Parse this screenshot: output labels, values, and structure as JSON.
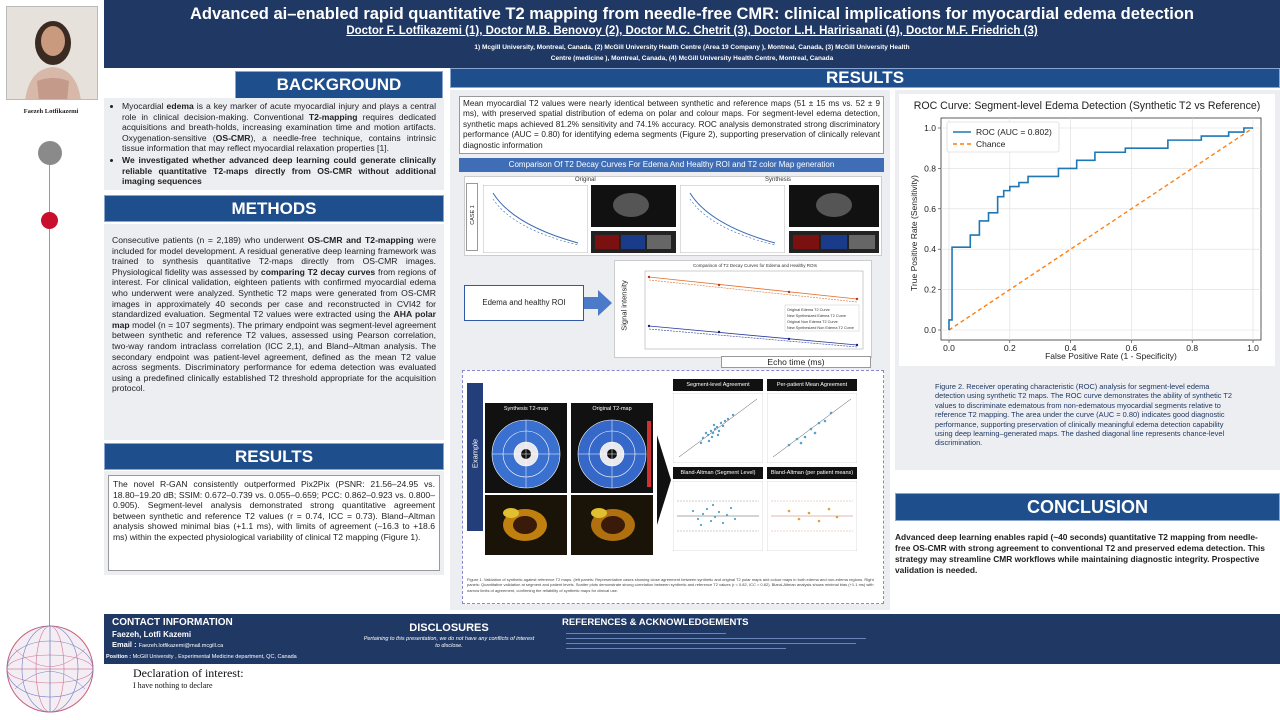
{
  "header": {
    "title": "Advanced ai–enabled rapid quantitative T2 mapping from needle-free CMR: clinical implications for myocardial edema detection",
    "authors": "Doctor F. Lotfikazemi (1), Doctor M.B. Benovoy (2), Doctor M.C. Chetrit (3), Doctor L.H. Haririsanati (4), Doctor M.F. Friedrich (3)",
    "affiliations_1": "1) Mcgill University, Montreal, Canada, (2) McGill University Health Centre (Area 19 Company ), Montreal, Canada, (3) McGill University Health",
    "affiliations_2": "Centre (medicine ), Montreal, Canada, (4) McGill University Health Centre, Montreal, Canada"
  },
  "presenter": {
    "name": "Faezeh Lotfikazemi"
  },
  "background": {
    "title": "BACKGROUND",
    "b1_a": "Myocardial ",
    "b1_b": "edema",
    "b1_c": " is a key marker of acute myocardial injury and plays a central role in clinical decision-making. Conventional ",
    "b1_d": "T2-mapping",
    "b1_e": " requires dedicated acquisitions and breath-holds, increasing examination time and motion artifacts. Oxygenation-sensitive (",
    "b1_f": "OS-CMR",
    "b1_g": "), a needle-free technique, contains intrinsic tissue information that may reflect myocardial relaxation properties [1].",
    "b2": "We investigated whether advanced deep learning could generate clinically reliable quantitative T2-maps directly from OS-CMR without additional imaging sequences"
  },
  "methods": {
    "title": "METHODS",
    "p_a": "Consecutive patients (n = 2,189) who underwent ",
    "p_b": "OS-CMR and T2-mapping",
    "p_c": " were included for model development. A residual generative deep learning framework was trained to synthesis quantitative T2-maps directly from OS-CMR images. Physiological fidelity was assessed by ",
    "p_d": "comparing T2 decay curves",
    "p_e": " from regions of interest. For clinical validation, eighteen patients with confirmed myocardial edema who underwent were analyzed. Synthetic T2 maps were generated from OS-CMR images in approximately 40 seconds per case and reconstructed in CVI42 for standardized evaluation. Segmental T2 values were extracted using the ",
    "p_f": "AHA polar map",
    "p_g": " model (n = 107 segments). The primary endpoint was segment-level agreement between synthetic and reference T2 values, assessed using Pearson correlation, two-way random intraclass correlation (ICC 2,1), and Bland–Altman analysis. The secondary endpoint was patient-level agreement, defined as the mean T2 value across segments. Discriminatory performance for edema detection was evaluated using a predefined clinically established T2 threshold appropriate for the acquisition protocol."
  },
  "results_left": {
    "title": "RESULTS",
    "text": "The novel R-GAN consistently outperformed Pix2Pix (PSNR: 21.56–24.95 vs. 18.80–19.20 dB; SSIM: 0.672–0.739 vs. 0.055–0.659; PCC: 0.862–0.923 vs. 0.800–0.905). Segment-level analysis demonstrated strong quantitative agreement between synthetic and reference T2 values (r = 0.74, ICC = 0.73). Bland–Altman analysis showed minimal bias (+1.1 ms), with limits of agreement (–16.3 to +18.6 ms) within the expected physiological variability of clinical T2 mapping (Figure 1)."
  },
  "results_main": {
    "title": "RESULTS",
    "summary": "Mean myocardial T2 values were nearly identical between synthetic and reference maps (51 ± 15 ms vs. 52 ± 9 ms), with preserved spatial distribution of edema on polar and colour maps. For segment-level edema detection, synthetic maps achieved 81.2% sensitivity and 74.1% accuracy. ROC analysis demonstrated strong discriminatory performance (AUC = 0.80) for identifying edema segments (Figure 2), supporting preservation of clinically relevant diagnostic information",
    "fig_banner": "Comparison Of T2 Decay Curves For Edema And Healthy ROI and T2 color Map generation",
    "original_label": "Original",
    "synthesis_label": "Synthesis",
    "case_label": "CASE 1",
    "roi_label": "Edema and healthy ROI",
    "decay_title": "Comparison of T2 Decay Curves for Edema and Healthy ROIs",
    "decay_ylabel": "Signal intensity",
    "decay_xlabel": "Echo time (ms)",
    "legend": [
      "Original Edema T2 Curve",
      "New Synthesized Edema T2 Curve",
      "Original Non Edema T2 Curve",
      "New Synthesized Non Edema T2 Curve"
    ],
    "synth_map_label": "Synthesis T2-map",
    "orig_map_label": "Original T2-map",
    "example_label": "Example",
    "seg_agree_label": "Segment-level Agreement",
    "pat_agree_label": "Per-patient Mean Agreement",
    "ba_seg_label": "Bland-Altman (Segment Level)",
    "ba_pat_label": "Bland-Altman (per patient means)",
    "fig1_caption": "Figure 1. Validation of synthetic against reference T2 maps. (left panels: Representative cases showing close agreement between synthetic and original T2 polar maps and colour maps in both edema and non-edema regions. Right panels: Quantitative validation at segment and patient levels. Scatter plots demonstrate strong correlation between synthetic and reference T2 values (r = 0.82, ICC = 0.82). Bland-Altman analysis shows minimal bias (+1.1 ms) with narrow limits of agreement, confirming the reliability of synthetic maps for clinical use."
  },
  "roc": {
    "title": "ROC Curve: Segment-level Edema Detection (Synthetic T2 vs Reference)",
    "legend_roc": "ROC (AUC = 0.802)",
    "legend_chance": "Chance",
    "caption": "Figure 2. Receiver operating characteristic (ROC) analysis for segment-level edema detection using synthetic T2 maps. The ROC curve demonstrates the ability of synthetic T2 values to discriminate edematous from non-edematous myocardial segments relative to reference T2 mapping. The area under the curve (AUC = 0.80) indicates good diagnostic performance, supporting preservation of clinically meaningful edema detection capability using deep learning–generated maps. The dashed diagonal line represents chance-level discrimination."
  },
  "chart_data": {
    "type": "line",
    "title": "ROC Curve: Segment-level Edema Detection (Synthetic T2 vs Reference)",
    "xlabel": "False Positive Rate (1 - Specificity)",
    "ylabel": "True Positive Rate (Sensitivity)",
    "xlim": [
      0,
      1
    ],
    "ylim": [
      0,
      1
    ],
    "xticks": [
      "0.0",
      "0.2",
      "0.4",
      "0.6",
      "0.8",
      "1.0"
    ],
    "yticks": [
      "0.0",
      "0.2",
      "0.4",
      "0.6",
      "0.8",
      "1.0"
    ],
    "grid": true,
    "legend_position": "top-left",
    "series": [
      {
        "name": "ROC (AUC = 0.802)",
        "color": "#1f77b4",
        "x": [
          0,
          0,
          0.01,
          0.01,
          0.07,
          0.07,
          0.1,
          0.1,
          0.13,
          0.13,
          0.16,
          0.16,
          0.18,
          0.18,
          0.2,
          0.2,
          0.23,
          0.23,
          0.26,
          0.26,
          0.36,
          0.36,
          0.42,
          0.42,
          0.48,
          0.48,
          0.58,
          0.58,
          0.72,
          0.72,
          0.83,
          0.83,
          0.92,
          0.92,
          0.97,
          0.97,
          1.0
        ],
        "y": [
          0,
          0.05,
          0.05,
          0.41,
          0.41,
          0.47,
          0.47,
          0.54,
          0.54,
          0.58,
          0.58,
          0.66,
          0.66,
          0.69,
          0.69,
          0.71,
          0.71,
          0.73,
          0.73,
          0.76,
          0.76,
          0.8,
          0.8,
          0.84,
          0.84,
          0.88,
          0.88,
          0.9,
          0.9,
          0.94,
          0.94,
          0.96,
          0.96,
          0.98,
          0.98,
          1.0,
          1.0
        ]
      },
      {
        "name": "Chance",
        "color": "#ff7f0e",
        "x": [
          0,
          1
        ],
        "y": [
          0,
          1
        ]
      }
    ]
  },
  "conclusion": {
    "title": "CONCLUSION",
    "text": "Advanced deep learning enables rapid (~40 seconds) quantitative T2 mapping from needle-free OS-CMR with strong agreement to conventional T2 and preserved edema detection. This strategy may streamline CMR workflows while maintaining diagnostic integrity. Prospective validation is needed."
  },
  "footer": {
    "contact_title": "CONTACT INFORMATION",
    "contact_name": "Faezeh, Lotfi Kazemi",
    "email_label": "Email :",
    "email_value": "Faezeh.lotfikazemi@mail.mcgill.ca",
    "position_label": "Position :",
    "position_value": "McGill University , Experimental Medicine department, QC, Canada",
    "disclosures_title": "DISCLOSURES",
    "disclosures_text": "Pertaining to this presentation, we do not have any conflicts of interest to disclose.",
    "refs_title": "REFERENCES & ACKNOWLEDGEMENTS"
  },
  "declaration": {
    "title": "Declaration of interest:",
    "text": "I have nothing to declare"
  }
}
